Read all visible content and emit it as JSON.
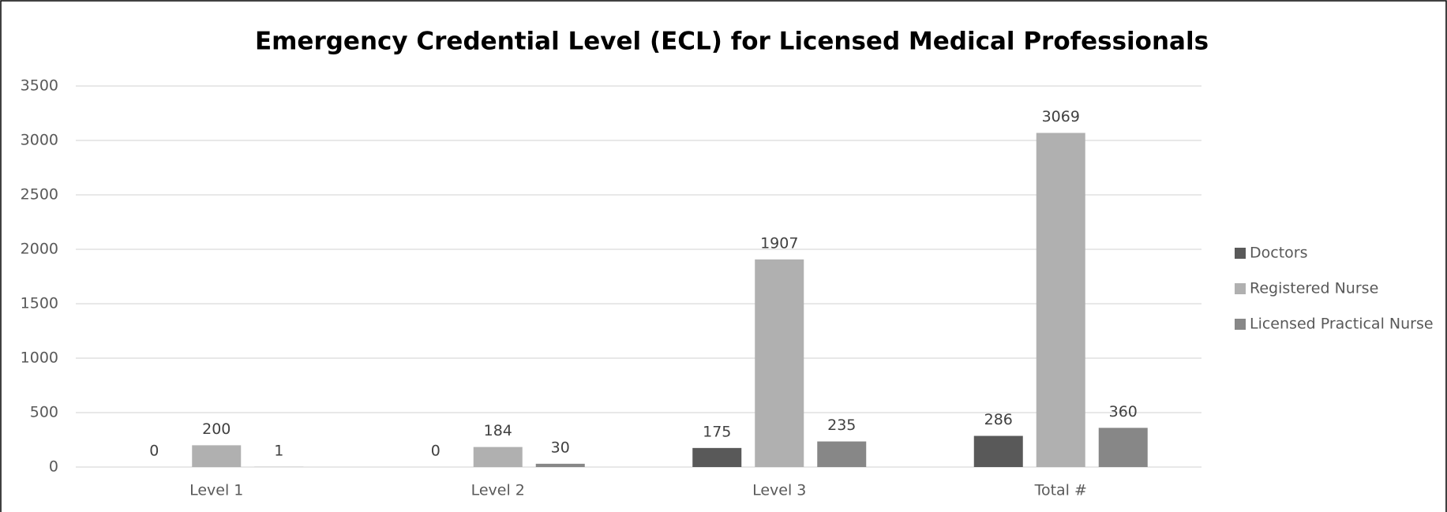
{
  "chart_data": {
    "type": "bar",
    "title": "Emergency Credential Level (ECL) for Licensed Medical Professionals",
    "categories": [
      "Level 1",
      "Level 2",
      "Level 3",
      "Total #"
    ],
    "series": [
      {
        "name": "Doctors",
        "color": "#595959",
        "values": [
          0,
          0,
          175,
          286
        ]
      },
      {
        "name": "Registered Nurse",
        "color": "#b0b0b0",
        "values": [
          200,
          184,
          1907,
          3069
        ]
      },
      {
        "name": "Licensed Practical Nurse",
        "color": "#878787",
        "values": [
          1,
          30,
          235,
          360
        ]
      }
    ],
    "ylim": [
      0,
      3500
    ],
    "yticks": [
      0,
      500,
      1000,
      1500,
      2000,
      2500,
      3000,
      3500
    ],
    "grid": true,
    "legend": "right"
  }
}
